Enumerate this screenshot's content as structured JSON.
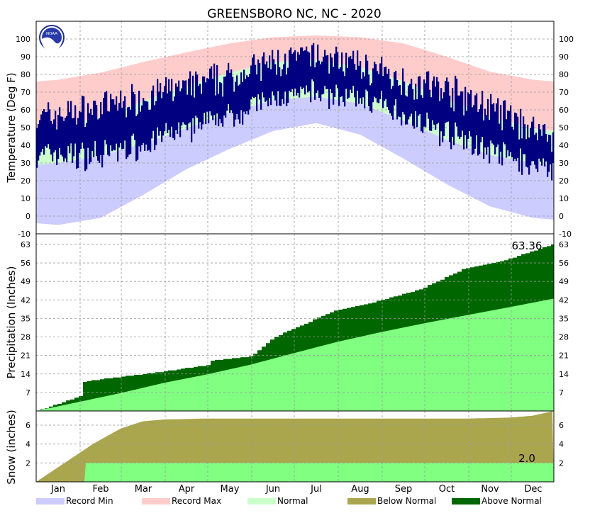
{
  "title": "GREENSBORO NC, NC - 2020",
  "logo_text": "NOAA",
  "months": [
    "Jan",
    "Feb",
    "Mar",
    "Apr",
    "May",
    "Jun",
    "Jul",
    "Aug",
    "Sep",
    "Oct",
    "Nov",
    "Dec"
  ],
  "legend": [
    {
      "label": "Record Min",
      "color": "#ccccff"
    },
    {
      "label": "Record Max",
      "color": "#ffcccc"
    },
    {
      "label": "Normal",
      "color": "#ccffcc"
    },
    {
      "label": "Below Normal",
      "color": "#aaa64e"
    },
    {
      "label": "Above Normal",
      "color": "#006600"
    }
  ],
  "colors": {
    "record_min": "#ccccff",
    "record_max": "#ffcccc",
    "normal": "#ccffcc",
    "observed_temp": "#000080",
    "precip_normal": "#80ff80",
    "above_normal": "#006600",
    "below_normal": "#aaa64e",
    "grid": "#999999"
  },
  "chart_data": [
    {
      "type": "area",
      "panel": "temperature",
      "ylabel": "Temperature (Deg F)",
      "ylim": [
        -10,
        110
      ],
      "yticks": [
        -10,
        0,
        10,
        20,
        30,
        40,
        50,
        60,
        70,
        80,
        90,
        100
      ],
      "grid": true,
      "x_dates": [
        "Jan 1",
        "Feb 1",
        "Mar 1",
        "Apr 1",
        "May 1",
        "Jun 1",
        "Jul 1",
        "Aug 1",
        "Sep 1",
        "Oct 1",
        "Nov 1",
        "Dec 1",
        "Dec 31"
      ],
      "series": [
        {
          "name": "Record Max",
          "values": [
            76,
            78,
            84,
            90,
            95,
            100,
            102,
            102,
            100,
            95,
            85,
            78,
            76
          ]
        },
        {
          "name": "Normal High",
          "values": [
            48,
            52,
            60,
            70,
            77,
            85,
            89,
            87,
            81,
            71,
            61,
            51,
            48
          ]
        },
        {
          "name": "Normal Low",
          "values": [
            29,
            31,
            37,
            45,
            54,
            63,
            68,
            67,
            60,
            48,
            38,
            31,
            29
          ]
        },
        {
          "name": "Record Min",
          "values": [
            -4,
            -6,
            4,
            20,
            33,
            43,
            53,
            52,
            40,
            25,
            11,
            0,
            -2
          ]
        },
        {
          "name": "Observed High",
          "values": [
            55,
            60,
            62,
            72,
            74,
            82,
            91,
            90,
            80,
            73,
            70,
            52,
            45
          ]
        },
        {
          "name": "Observed Low",
          "values": [
            35,
            33,
            36,
            45,
            52,
            62,
            70,
            70,
            63,
            52,
            42,
            31,
            27
          ]
        }
      ]
    },
    {
      "type": "area",
      "panel": "precipitation",
      "ylabel": "Precipitation (Inches)",
      "ylim": [
        0,
        67
      ],
      "yticks": [
        7,
        14,
        21,
        28,
        35,
        42,
        49,
        56,
        63
      ],
      "grid": true,
      "annotation": "63.36",
      "series": [
        {
          "name": "Observed",
          "x_day": [
            0,
            15,
            30,
            31,
            60,
            90,
            120,
            121,
            150,
            166,
            180,
            210,
            240,
            270,
            300,
            330,
            365
          ],
          "values": [
            0,
            2.8,
            5.5,
            11.0,
            13.0,
            15.0,
            17.4,
            19.0,
            20.5,
            27.5,
            31.0,
            38.0,
            41.5,
            46.0,
            53.5,
            57.0,
            63.36
          ]
        },
        {
          "name": "Normal",
          "x_day": [
            0,
            31,
            59,
            90,
            120,
            151,
            181,
            212,
            243,
            273,
            304,
            334,
            365
          ],
          "values": [
            0,
            3.5,
            6.7,
            10.6,
            13.8,
            17.5,
            21.8,
            26.1,
            29.8,
            33.1,
            36.3,
            39.3,
            42.5
          ]
        }
      ]
    },
    {
      "type": "area",
      "panel": "snow",
      "ylabel": "Snow (inches)",
      "ylim": [
        0,
        7.5
      ],
      "yticks": [
        2,
        4,
        6
      ],
      "grid": true,
      "annotation": "2.0",
      "series": [
        {
          "name": "Normal",
          "x_day": [
            0,
            20,
            40,
            59,
            75,
            90,
            120,
            305,
            334,
            350,
            365
          ],
          "values": [
            0,
            2.0,
            4.0,
            5.6,
            6.4,
            6.6,
            6.7,
            6.7,
            6.8,
            7.0,
            7.5
          ]
        },
        {
          "name": "Observed",
          "x_day": [
            0,
            34,
            35,
            365
          ],
          "values": [
            0,
            0,
            2.0,
            2.0
          ]
        }
      ]
    }
  ]
}
